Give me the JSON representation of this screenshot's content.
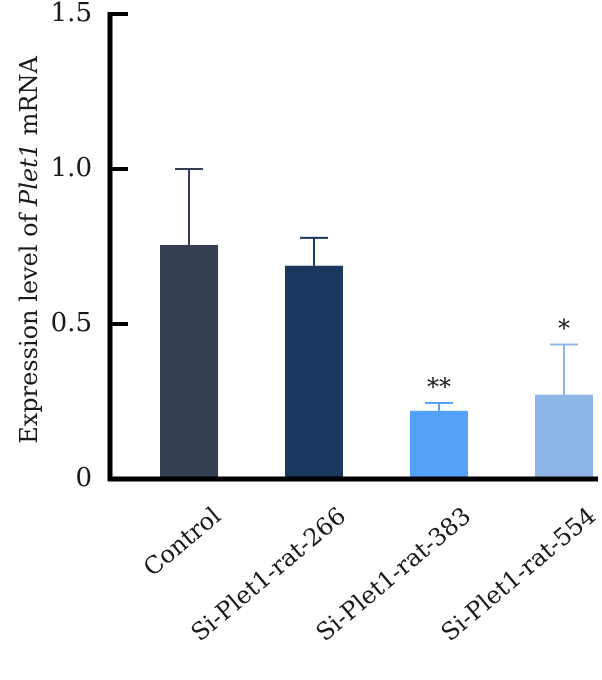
{
  "chart_data": {
    "type": "bar",
    "categories": [
      "Control",
      "Si-Plet1-rat-266",
      "Si-Plet1-rat-383",
      "Si-Plet1-rat-554"
    ],
    "values": [
      0.755,
      0.688,
      0.22,
      0.272
    ],
    "errors": [
      0.245,
      0.09,
      0.025,
      0.162
    ],
    "significance": [
      "",
      "",
      "**",
      "*"
    ],
    "colors": [
      "#343f51",
      "#1a385e",
      "#55a2fb",
      "#8db5e6"
    ],
    "ylabel_prefix": "Expression level of ",
    "ylabel_gene": "Plet1",
    "ylabel_suffix": " mRNA",
    "ylim": [
      0,
      1.5
    ],
    "yticks": [
      0,
      0.5,
      1.0,
      1.5
    ],
    "ytick_labels": [
      "0",
      "0.5",
      "1.0",
      "1.5"
    ],
    "grid": false,
    "legend": "none"
  }
}
